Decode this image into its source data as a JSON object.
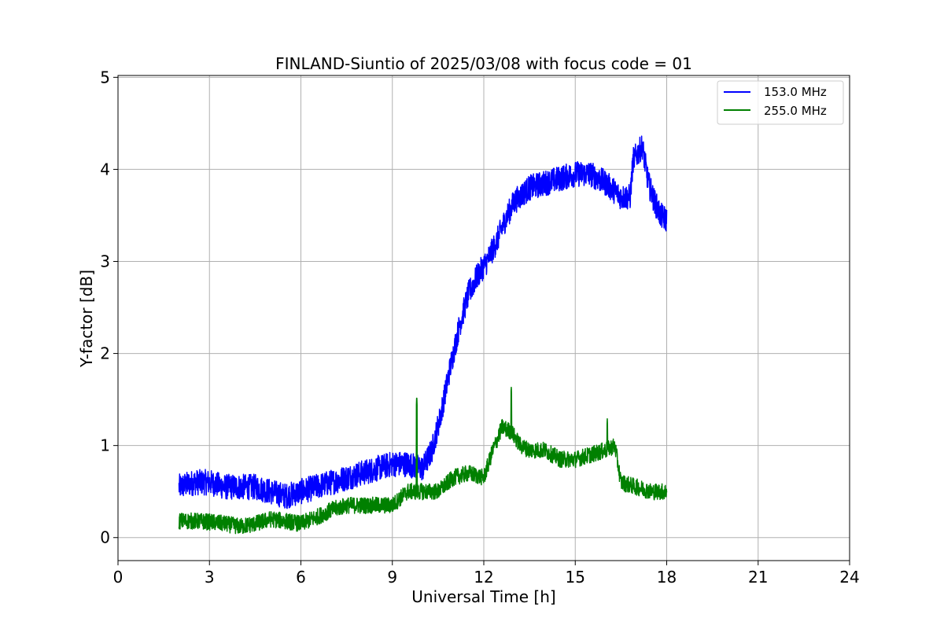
{
  "chart_data": {
    "type": "line",
    "title": "FINLAND-Siuntio of 2025/03/08 with focus code = 01",
    "xlabel": "Universal Time [h]",
    "ylabel": "Y-factor [dB]",
    "xlim": [
      0,
      24
    ],
    "ylim": [
      -0.25,
      5.02
    ],
    "xticks": [
      0,
      3,
      6,
      9,
      12,
      15,
      18,
      21,
      24
    ],
    "yticks": [
      0,
      1,
      2,
      3,
      4,
      5
    ],
    "grid": true,
    "legend_position": "top-right",
    "series": [
      {
        "name": "153.0 MHz",
        "color": "#0000ff",
        "x": [
          2.0,
          2.5,
          3.0,
          3.5,
          4.0,
          4.5,
          5.0,
          5.5,
          6.0,
          6.5,
          7.0,
          7.5,
          8.0,
          8.5,
          9.0,
          9.5,
          10.0,
          10.3,
          10.6,
          10.9,
          11.2,
          11.5,
          11.8,
          12.1,
          12.4,
          12.7,
          13.0,
          13.5,
          14.0,
          14.5,
          15.0,
          15.5,
          16.0,
          16.5,
          16.8,
          16.9,
          17.2,
          17.4,
          17.6,
          17.8,
          18.0
        ],
        "y": [
          0.55,
          0.6,
          0.6,
          0.55,
          0.55,
          0.55,
          0.5,
          0.45,
          0.5,
          0.55,
          0.6,
          0.65,
          0.7,
          0.75,
          0.8,
          0.8,
          0.75,
          0.95,
          1.35,
          1.85,
          2.3,
          2.65,
          2.85,
          3.0,
          3.2,
          3.45,
          3.65,
          3.8,
          3.85,
          3.9,
          3.95,
          3.95,
          3.85,
          3.7,
          3.7,
          4.1,
          4.25,
          3.85,
          3.65,
          3.5,
          3.45
        ],
        "noise_amplitude": 0.28
      },
      {
        "name": "255.0 MHz",
        "color": "#008000",
        "x": [
          2.0,
          2.5,
          3.0,
          3.5,
          4.0,
          4.5,
          5.0,
          5.5,
          6.0,
          6.5,
          7.0,
          7.5,
          8.0,
          8.5,
          9.0,
          9.5,
          10.0,
          10.5,
          11.0,
          11.5,
          12.0,
          12.3,
          12.6,
          12.9,
          13.2,
          13.5,
          14.0,
          14.5,
          15.0,
          15.5,
          16.0,
          16.3,
          16.5,
          17.0,
          17.5,
          18.0
        ],
        "y": [
          0.18,
          0.18,
          0.17,
          0.15,
          0.12,
          0.15,
          0.2,
          0.18,
          0.15,
          0.22,
          0.3,
          0.35,
          0.35,
          0.35,
          0.35,
          0.5,
          0.5,
          0.5,
          0.65,
          0.7,
          0.65,
          0.95,
          1.2,
          1.15,
          1.0,
          0.95,
          0.95,
          0.85,
          0.85,
          0.9,
          0.95,
          1.0,
          0.6,
          0.55,
          0.5,
          0.5
        ],
        "noise_amplitude": 0.18,
        "spikes": [
          [
            9.8,
            1.55
          ],
          [
            12.9,
            1.65
          ],
          [
            16.05,
            1.3
          ]
        ]
      }
    ]
  }
}
